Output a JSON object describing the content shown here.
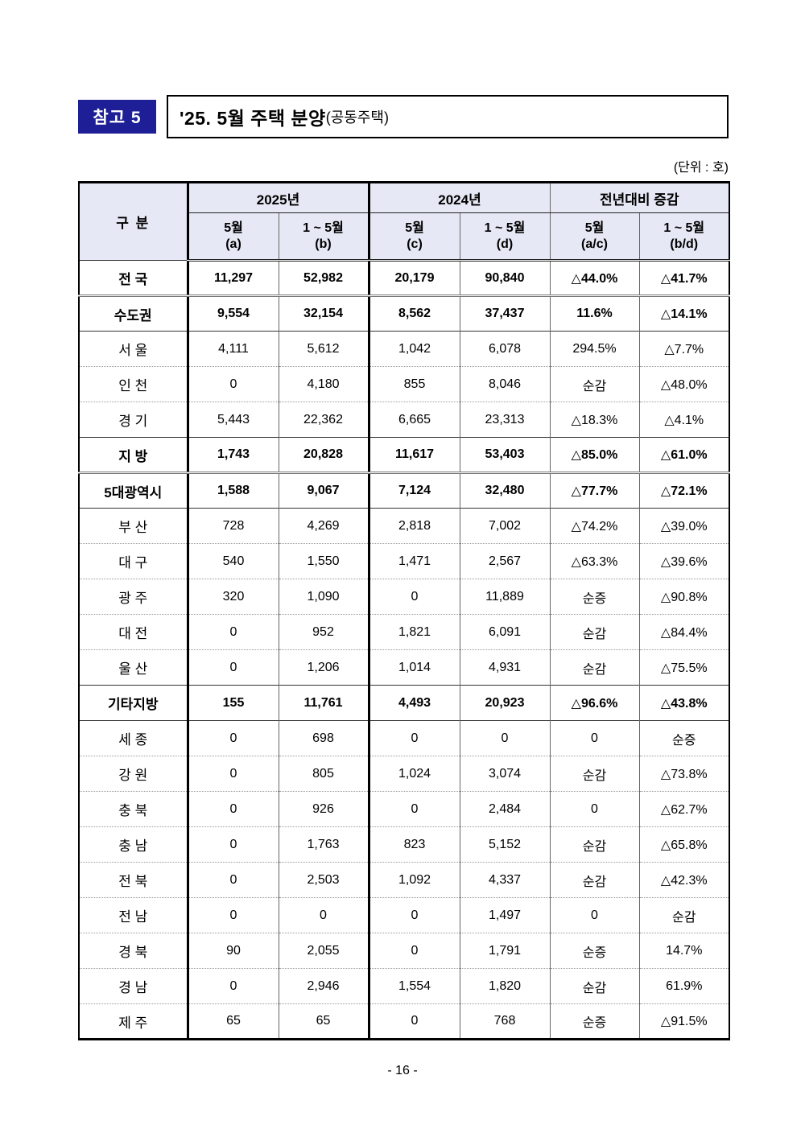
{
  "page": {
    "badge": "참고 5",
    "title": "'25. 5월 주택 분양",
    "title_suffix": "(공동주택)",
    "unit_note": "(단위 : 호)",
    "page_number": "- 16 -"
  },
  "colors": {
    "badge_bg": "#1e1e96",
    "header_bg": "#e6e8f5"
  },
  "table": {
    "corner_label": "구  분",
    "groups": [
      {
        "label": "2025년"
      },
      {
        "label": "2024년"
      },
      {
        "label": "전년대비 증감"
      }
    ],
    "subcols": [
      {
        "l1": "5월",
        "l2": "(a)"
      },
      {
        "l1": "1 ~ 5월",
        "l2": "(b)"
      },
      {
        "l1": "5월",
        "l2": "(c)"
      },
      {
        "l1": "1 ~ 5월",
        "l2": "(d)"
      },
      {
        "l1": "5월",
        "l2": "(a/c)"
      },
      {
        "l1": "1 ~ 5월",
        "l2": "(b/d)"
      }
    ],
    "rows": [
      {
        "label": "전 국",
        "bold": true,
        "values": [
          "11,297",
          "52,982",
          "20,179",
          "90,840",
          "△44.0%",
          "△41.7%"
        ]
      },
      {
        "label": "수도권",
        "bold": true,
        "values": [
          "9,554",
          "32,154",
          "8,562",
          "37,437",
          "11.6%",
          "△14.1%"
        ]
      },
      {
        "label": "서 울",
        "bold": false,
        "values": [
          "4,111",
          "5,612",
          "1,042",
          "6,078",
          "294.5%",
          "△7.7%"
        ]
      },
      {
        "label": "인 천",
        "bold": false,
        "values": [
          "0",
          "4,180",
          "855",
          "8,046",
          "순감",
          "△48.0%"
        ]
      },
      {
        "label": "경 기",
        "bold": false,
        "values": [
          "5,443",
          "22,362",
          "6,665",
          "23,313",
          "△18.3%",
          "△4.1%"
        ]
      },
      {
        "label": "지  방",
        "bold": true,
        "values": [
          "1,743",
          "20,828",
          "11,617",
          "53,403",
          "△85.0%",
          "△61.0%"
        ]
      },
      {
        "label": "5대광역시",
        "bold": true,
        "values": [
          "1,588",
          "9,067",
          "7,124",
          "32,480",
          "△77.7%",
          "△72.1%"
        ]
      },
      {
        "label": "부 산",
        "bold": false,
        "values": [
          "728",
          "4,269",
          "2,818",
          "7,002",
          "△74.2%",
          "△39.0%"
        ]
      },
      {
        "label": "대 구",
        "bold": false,
        "values": [
          "540",
          "1,550",
          "1,471",
          "2,567",
          "△63.3%",
          "△39.6%"
        ]
      },
      {
        "label": "광 주",
        "bold": false,
        "values": [
          "320",
          "1,090",
          "0",
          "11,889",
          "순증",
          "△90.8%"
        ]
      },
      {
        "label": "대 전",
        "bold": false,
        "values": [
          "0",
          "952",
          "1,821",
          "6,091",
          "순감",
          "△84.4%"
        ]
      },
      {
        "label": "울 산",
        "bold": false,
        "values": [
          "0",
          "1,206",
          "1,014",
          "4,931",
          "순감",
          "△75.5%"
        ]
      },
      {
        "label": "기타지방",
        "bold": true,
        "values": [
          "155",
          "11,761",
          "4,493",
          "20,923",
          "△96.6%",
          "△43.8%"
        ]
      },
      {
        "label": "세 종",
        "bold": false,
        "values": [
          "0",
          "698",
          "0",
          "0",
          "0",
          "순증"
        ]
      },
      {
        "label": "강 원",
        "bold": false,
        "values": [
          "0",
          "805",
          "1,024",
          "3,074",
          "순감",
          "△73.8%"
        ]
      },
      {
        "label": "충 북",
        "bold": false,
        "values": [
          "0",
          "926",
          "0",
          "2,484",
          "0",
          "△62.7%"
        ]
      },
      {
        "label": "충 남",
        "bold": false,
        "values": [
          "0",
          "1,763",
          "823",
          "5,152",
          "순감",
          "△65.8%"
        ]
      },
      {
        "label": "전 북",
        "bold": false,
        "values": [
          "0",
          "2,503",
          "1,092",
          "4,337",
          "순감",
          "△42.3%"
        ]
      },
      {
        "label": "전 남",
        "bold": false,
        "values": [
          "0",
          "0",
          "0",
          "1,497",
          "0",
          "순감"
        ]
      },
      {
        "label": "경 북",
        "bold": false,
        "values": [
          "90",
          "2,055",
          "0",
          "1,791",
          "순증",
          "14.7%"
        ]
      },
      {
        "label": "경 남",
        "bold": false,
        "values": [
          "0",
          "2,946",
          "1,554",
          "1,820",
          "순감",
          "61.9%"
        ]
      },
      {
        "label": "제 주",
        "bold": false,
        "values": [
          "65",
          "65",
          "0",
          "768",
          "순증",
          "△91.5%"
        ]
      }
    ]
  }
}
